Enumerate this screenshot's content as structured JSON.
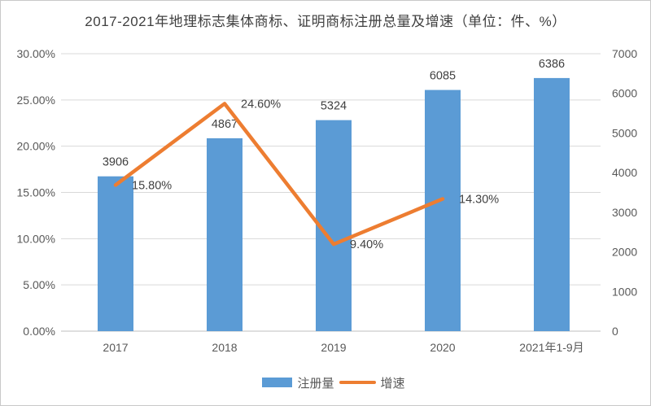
{
  "chart_data": {
    "type": "bar+line",
    "title": "2017-2021年地理标志集体商标、证明商标注册总量及增速（单位：件、%）",
    "categories": [
      "2017",
      "2018",
      "2019",
      "2020",
      "2021年1-9月"
    ],
    "series": [
      {
        "name": "注册量",
        "type": "bar",
        "axis": "right",
        "color": "#5B9BD5",
        "values": [
          3906,
          4867,
          5324,
          6085,
          6386
        ],
        "data_labels": [
          "3906",
          "4867",
          "5324",
          "6085",
          "6386"
        ]
      },
      {
        "name": "增速",
        "type": "line",
        "axis": "left",
        "color": "#ED7D31",
        "values": [
          15.8,
          24.6,
          9.4,
          14.3,
          null
        ],
        "data_labels": [
          "15.80%",
          "24.60%",
          "9.40%",
          "14.30%",
          ""
        ]
      }
    ],
    "left_axis": {
      "min": 0,
      "max": 30,
      "step": 5,
      "tick_labels": [
        "0.00%",
        "5.00%",
        "10.00%",
        "15.00%",
        "20.00%",
        "25.00%",
        "30.00%"
      ]
    },
    "right_axis": {
      "min": 0,
      "max": 7000,
      "step": 1000,
      "tick_labels": [
        "0",
        "1000",
        "2000",
        "3000",
        "4000",
        "5000",
        "6000",
        "7000"
      ]
    },
    "legend": {
      "position": "bottom",
      "entries": [
        "注册量",
        "增速"
      ]
    },
    "grid": "horizontal",
    "colors": {
      "gridline": "#D9D9D9",
      "axis_line": "#BFBFBF",
      "tick_text": "#595959",
      "label_text": "#404040",
      "title_text": "#404040"
    }
  }
}
